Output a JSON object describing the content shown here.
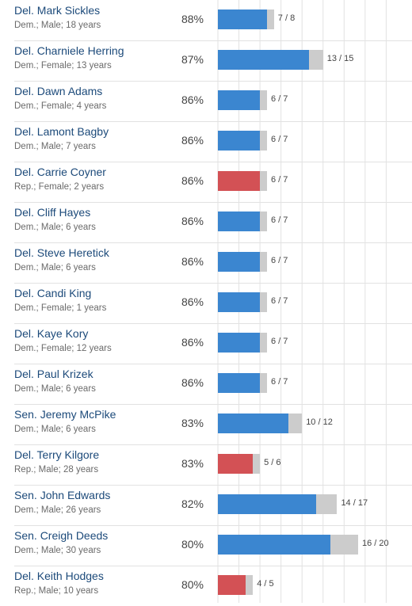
{
  "colors": {
    "dem": "#3b86d0",
    "rep": "#d35155",
    "remainder": "#cccccc",
    "grid": "#e2e2e2"
  },
  "chart_data": {
    "type": "bar",
    "series": [
      "party-agreement"
    ],
    "rows": [
      {
        "name": "Del. Mark Sickles",
        "meta": "Dem.; Male; 18 years",
        "party": "dem",
        "pct": "88%",
        "agree": 7,
        "total": 8,
        "votes_label": "7 / 8"
      },
      {
        "name": "Del. Charniele Herring",
        "meta": "Dem.; Female; 13 years",
        "party": "dem",
        "pct": "87%",
        "agree": 13,
        "total": 15,
        "votes_label": "13 / 15"
      },
      {
        "name": "Del. Dawn Adams",
        "meta": "Dem.; Female; 4 years",
        "party": "dem",
        "pct": "86%",
        "agree": 6,
        "total": 7,
        "votes_label": "6 / 7"
      },
      {
        "name": "Del. Lamont Bagby",
        "meta": "Dem.; Male; 7 years",
        "party": "dem",
        "pct": "86%",
        "agree": 6,
        "total": 7,
        "votes_label": "6 / 7"
      },
      {
        "name": "Del. Carrie Coyner",
        "meta": "Rep.; Female; 2 years",
        "party": "rep",
        "pct": "86%",
        "agree": 6,
        "total": 7,
        "votes_label": "6 / 7"
      },
      {
        "name": "Del. Cliff Hayes",
        "meta": "Dem.; Male; 6 years",
        "party": "dem",
        "pct": "86%",
        "agree": 6,
        "total": 7,
        "votes_label": "6 / 7"
      },
      {
        "name": "Del. Steve Heretick",
        "meta": "Dem.; Male; 6 years",
        "party": "dem",
        "pct": "86%",
        "agree": 6,
        "total": 7,
        "votes_label": "6 / 7"
      },
      {
        "name": "Del. Candi King",
        "meta": "Dem.; Female; 1 years",
        "party": "dem",
        "pct": "86%",
        "agree": 6,
        "total": 7,
        "votes_label": "6 / 7"
      },
      {
        "name": "Del. Kaye Kory",
        "meta": "Dem.; Female; 12 years",
        "party": "dem",
        "pct": "86%",
        "agree": 6,
        "total": 7,
        "votes_label": "6 / 7"
      },
      {
        "name": "Del. Paul Krizek",
        "meta": "Dem.; Male; 6 years",
        "party": "dem",
        "pct": "86%",
        "agree": 6,
        "total": 7,
        "votes_label": "6 / 7"
      },
      {
        "name": "Sen. Jeremy McPike",
        "meta": "Dem.; Male; 6 years",
        "party": "dem",
        "pct": "83%",
        "agree": 10,
        "total": 12,
        "votes_label": "10 / 12"
      },
      {
        "name": "Del. Terry Kilgore",
        "meta": "Rep.; Male; 28 years",
        "party": "rep",
        "pct": "83%",
        "agree": 5,
        "total": 6,
        "votes_label": "5 / 6"
      },
      {
        "name": "Sen. John Edwards",
        "meta": "Dem.; Male; 26 years",
        "party": "dem",
        "pct": "82%",
        "agree": 14,
        "total": 17,
        "votes_label": "14 / 17"
      },
      {
        "name": "Sen. Creigh Deeds",
        "meta": "Dem.; Male; 30 years",
        "party": "dem",
        "pct": "80%",
        "agree": 16,
        "total": 20,
        "votes_label": "16 / 20"
      },
      {
        "name": "Del. Keith Hodges",
        "meta": "Rep.; Male; 10 years",
        "party": "rep",
        "pct": "80%",
        "agree": 4,
        "total": 5,
        "votes_label": "4 / 5"
      }
    ],
    "gridline_unit_votes": 3,
    "grid": true
  }
}
